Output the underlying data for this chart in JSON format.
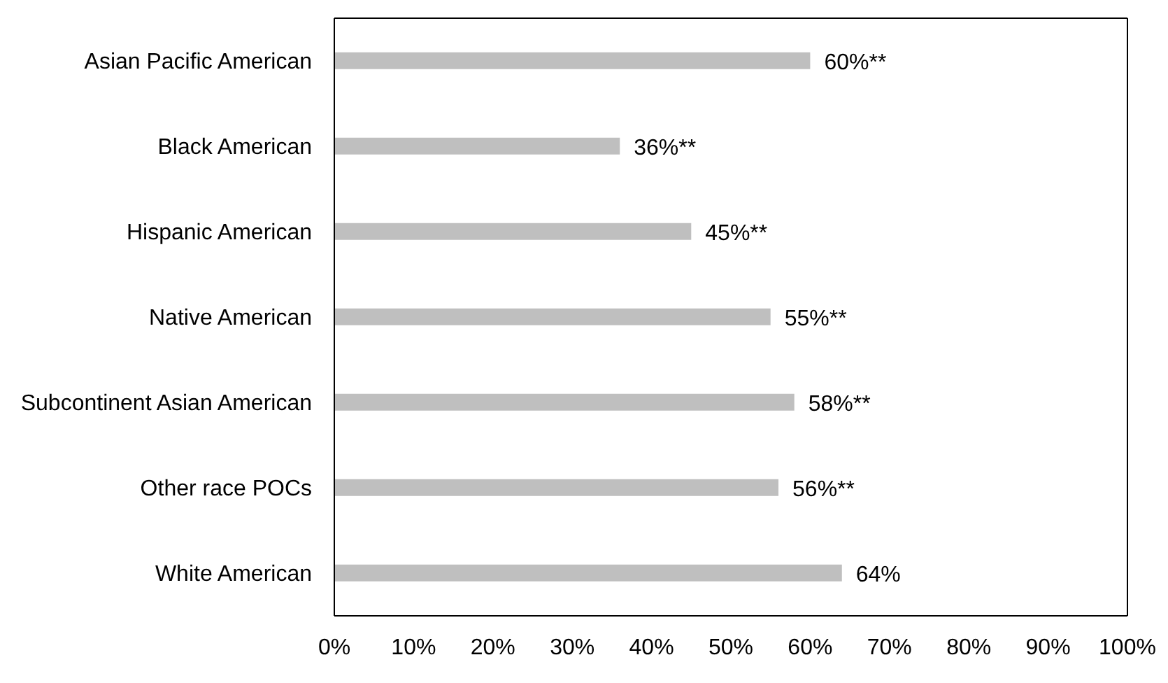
{
  "chart_data": {
    "type": "bar",
    "orientation": "horizontal",
    "categories": [
      "Asian Pacific American",
      "Black American",
      "Hispanic American",
      "Native American",
      "Subcontinent Asian American",
      "Other race POCs",
      "White American"
    ],
    "values": [
      60,
      36,
      45,
      55,
      58,
      56,
      64
    ],
    "value_labels": [
      "60%**",
      "36%**",
      "45%**",
      "55%**",
      "58%**",
      "56%**",
      "64%"
    ],
    "color": "#bfbfbf",
    "xlim": [
      0,
      100
    ],
    "xticks": [
      {
        "value": 0,
        "label": "0%"
      },
      {
        "value": 10,
        "label": "10%"
      },
      {
        "value": 20,
        "label": "20%"
      },
      {
        "value": 30,
        "label": "30%"
      },
      {
        "value": 40,
        "label": "40%"
      },
      {
        "value": 50,
        "label": "50%"
      },
      {
        "value": 60,
        "label": "60%"
      },
      {
        "value": 70,
        "label": "70%"
      },
      {
        "value": 80,
        "label": "80%"
      },
      {
        "value": 90,
        "label": "90%"
      },
      {
        "value": 100,
        "label": "100%"
      }
    ],
    "grid": false,
    "legend": false
  }
}
